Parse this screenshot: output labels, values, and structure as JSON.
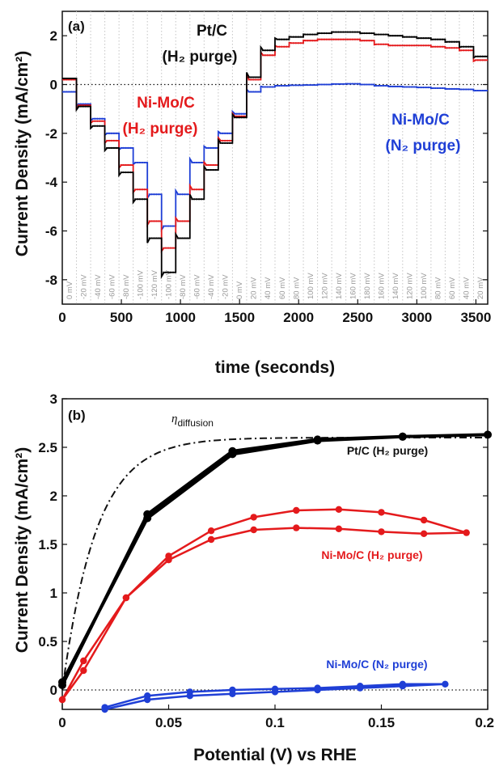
{
  "chart_data": [
    {
      "panel": "(a)",
      "type": "line",
      "xlabel": "time (seconds)",
      "ylabel": "Current Density (mA/cm²)",
      "xlim": [
        0,
        3600
      ],
      "ylim": [
        -9,
        3
      ],
      "xticks": [
        "0",
        "500",
        "1000",
        "1500",
        "2000",
        "2500",
        "3000",
        "3500"
      ],
      "yticks": [
        "-8",
        "-6",
        "-4",
        "-2",
        "0",
        "2"
      ],
      "step_labels": [
        "0 mV",
        "-20 mV",
        "-40 mV",
        "-60 mV",
        "-80 mV",
        "-100 mV",
        "-120 mV",
        "-100 mV",
        "-80 mV",
        "-60 mV",
        "-40 mV",
        "-20 mV",
        "0 mV",
        "20 mV",
        "40 mV",
        "60 mV",
        "80 mV",
        "100 mV",
        "120 mV",
        "140 mV",
        "160 mV",
        "180 mV",
        "160 mV",
        "140 mV",
        "120 mV",
        "100 mV",
        "80 mV",
        "60 mV",
        "40 mV",
        "20 mV"
      ],
      "step_duration_s": 120,
      "series": [
        {
          "name": "Pt/C (H₂ purge)",
          "color": "#000000",
          "values": [
            0.25,
            -0.9,
            -1.7,
            -2.6,
            -3.6,
            -4.7,
            -6.3,
            -7.7,
            -6.3,
            -4.7,
            -3.5,
            -2.4,
            -1.35,
            0.3,
            1.4,
            1.85,
            1.95,
            2.05,
            2.1,
            2.15,
            2.15,
            2.1,
            2.05,
            2.0,
            1.95,
            1.9,
            1.85,
            1.75,
            1.55,
            1.15
          ]
        },
        {
          "name": "Ni-Mo/C (H₂ purge)",
          "color": "#e41a1c",
          "values": [
            0.2,
            -0.85,
            -1.5,
            -2.3,
            -3.3,
            -4.3,
            -5.6,
            -6.7,
            -5.6,
            -4.3,
            -3.3,
            -2.3,
            -1.3,
            0.2,
            1.2,
            1.55,
            1.7,
            1.8,
            1.85,
            1.85,
            1.85,
            1.8,
            1.65,
            1.6,
            1.6,
            1.6,
            1.55,
            1.5,
            1.4,
            1.0
          ]
        },
        {
          "name": "Ni-Mo/C (N₂ purge)",
          "color": "#1f3fd6",
          "values": [
            -0.3,
            -0.8,
            -1.4,
            -2.0,
            -2.6,
            -3.2,
            -4.5,
            -5.8,
            -4.5,
            -3.2,
            -2.6,
            -2.0,
            -1.2,
            -0.3,
            -0.1,
            -0.05,
            -0.03,
            -0.02,
            0.0,
            0.02,
            0.03,
            0.0,
            -0.05,
            -0.08,
            -0.1,
            -0.12,
            -0.15,
            -0.18,
            -0.2,
            -0.25
          ]
        }
      ],
      "annotations": [
        "Pt/C",
        "(H₂ purge)",
        "Ni-Mo/C",
        "(H₂ purge)",
        "Ni-Mo/C",
        "(N₂ purge)"
      ]
    },
    {
      "panel": "(b)",
      "type": "line",
      "xlabel": "Potential (V) vs RHE",
      "ylabel": "Current Density (mA/cm²)",
      "xlim": [
        0,
        0.2
      ],
      "ylim": [
        -0.2,
        3
      ],
      "xticks": [
        "0",
        "0.05",
        "0.1",
        "0.15",
        "0.2"
      ],
      "yticks": [
        "0",
        "0.5",
        "1",
        "1.5",
        "2",
        "2.5",
        "3"
      ],
      "series": [
        {
          "name": "Pt/C (H₂ purge)",
          "color": "#000000",
          "x": [
            0,
            0.04,
            0.08,
            0.12,
            0.16,
            0.2,
            0.16,
            0.12,
            0.08,
            0.04,
            0
          ],
          "y": [
            0.08,
            1.77,
            2.43,
            2.57,
            2.61,
            2.63,
            2.61,
            2.58,
            2.46,
            1.81,
            0.05
          ]
        },
        {
          "name": "Ni-Mo/C (H₂ purge)",
          "color": "#e41a1c",
          "x": [
            0,
            0.01,
            0.03,
            0.05,
            0.07,
            0.09,
            0.11,
            0.13,
            0.15,
            0.17,
            0.19,
            0.17,
            0.15,
            0.13,
            0.11,
            0.09,
            0.07,
            0.05,
            0.03,
            0.01,
            0
          ],
          "y": [
            -0.1,
            0.3,
            0.95,
            1.38,
            1.64,
            1.78,
            1.85,
            1.86,
            1.83,
            1.75,
            1.62,
            1.61,
            1.63,
            1.66,
            1.67,
            1.65,
            1.55,
            1.34,
            0.95,
            0.2,
            -0.1
          ]
        },
        {
          "name": "Ni-Mo/C (N₂ purge)",
          "color": "#1f3fd6",
          "x": [
            0.02,
            0.04,
            0.06,
            0.08,
            0.1,
            0.12,
            0.14,
            0.16,
            0.18,
            0.16,
            0.14,
            0.12,
            0.1,
            0.08,
            0.06,
            0.04,
            0.02
          ],
          "y": [
            -0.18,
            -0.06,
            -0.02,
            0.0,
            0.01,
            0.02,
            0.04,
            0.06,
            0.06,
            0.04,
            0.02,
            0.0,
            -0.02,
            -0.04,
            -0.06,
            -0.1,
            -0.2
          ]
        }
      ],
      "reference_curve": {
        "label": "η",
        "label_sub": "diffusion",
        "limit": 2.6
      },
      "annotations": [
        "Pt/C (H₂ purge)",
        "Ni-Mo/C (H₂ purge)",
        "Ni-Mo/C (N₂ purge)"
      ]
    }
  ]
}
